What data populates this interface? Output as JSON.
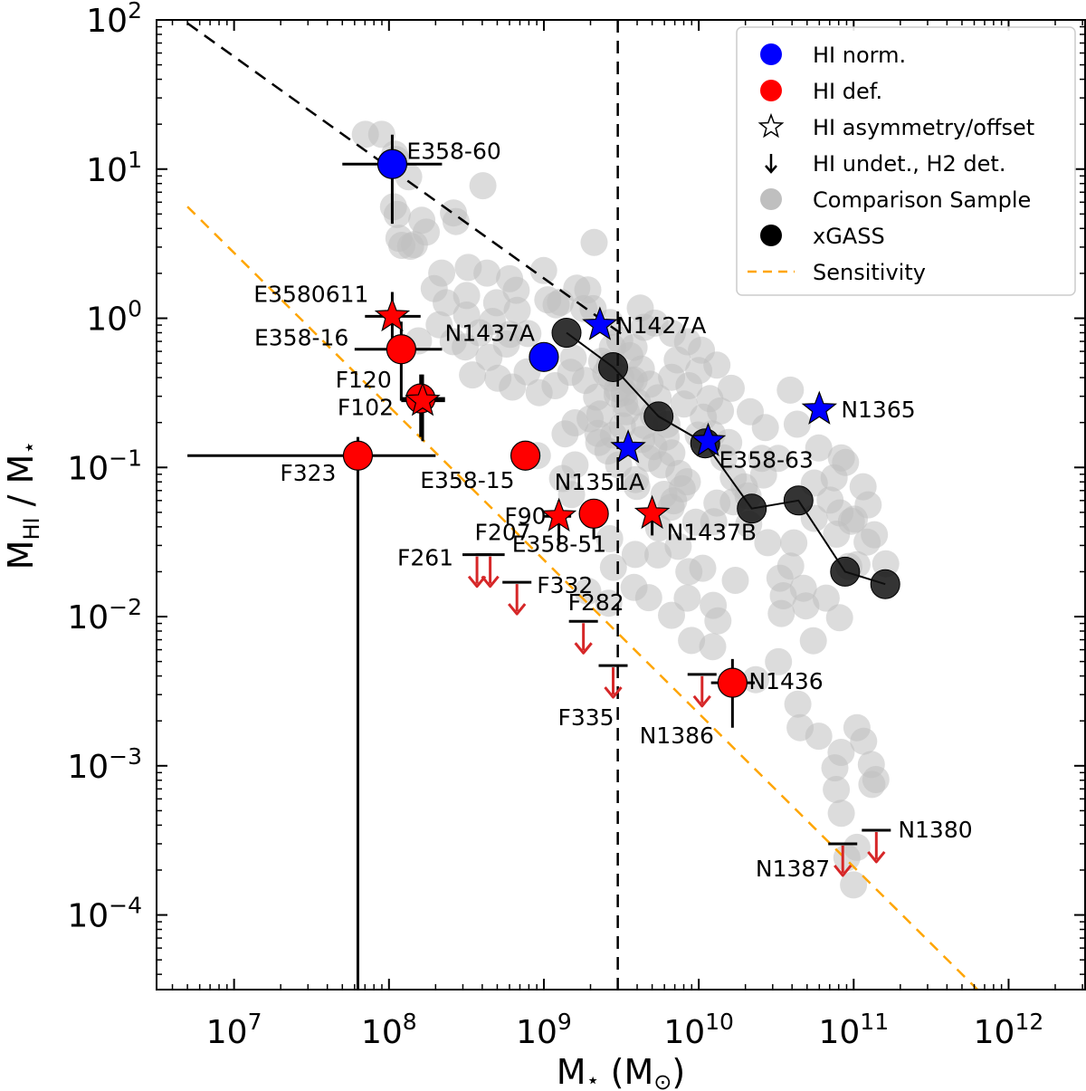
{
  "chart_data": {
    "type": "scatter",
    "xscale": "log",
    "yscale": "log",
    "xlim": [
      3160000.0,
      3160000000000.0
    ],
    "ylim": [
      3.16e-05,
      100
    ],
    "xlabel": "M⋆ (M⊙)",
    "ylabel": "MHI / M⋆",
    "xlabel_parts": [
      "M",
      "⋆",
      " (M",
      "⊙",
      ")"
    ],
    "ylabel_parts": [
      "M",
      "HI",
      " / M",
      "⋆"
    ],
    "xticks": [
      {
        "value": 10000000.0,
        "base": "10",
        "exp": "7"
      },
      {
        "value": 100000000.0,
        "base": "10",
        "exp": "8"
      },
      {
        "value": 1000000000.0,
        "base": "10",
        "exp": "9"
      },
      {
        "value": 10000000000.0,
        "base": "10",
        "exp": "10"
      },
      {
        "value": 100000000000.0,
        "base": "10",
        "exp": "11"
      },
      {
        "value": 1000000000000.0,
        "base": "10",
        "exp": "12"
      }
    ],
    "yticks": [
      {
        "value": 0.0001,
        "base": "10",
        "exp": "−4"
      },
      {
        "value": 0.001,
        "base": "10",
        "exp": "−3"
      },
      {
        "value": 0.01,
        "base": "10",
        "exp": "−2"
      },
      {
        "value": 0.1,
        "base": "10",
        "exp": "−1"
      },
      {
        "value": 1,
        "base": "10",
        "exp": "0"
      },
      {
        "value": 10,
        "base": "10",
        "exp": "1"
      },
      {
        "value": 100,
        "base": "10",
        "exp": "2"
      }
    ],
    "grid": false,
    "legend_position": "top-right",
    "colors": {
      "hi_norm": "#0000ff",
      "hi_def": "#ff0000",
      "comparison": "#bfbfbf",
      "xgass": "#000000",
      "sensitivity": "#ffa500",
      "arrow": "#d62728"
    },
    "legend": [
      {
        "label": "HI norm.",
        "marker": "circle",
        "color": "#0000ff"
      },
      {
        "label": "HI def.",
        "marker": "circle",
        "color": "#ff0000"
      },
      {
        "label": "HI asymmetry/offset",
        "marker": "star-open",
        "color": "#000000"
      },
      {
        "label": "HI undet., H2 det.",
        "marker": "arrow-down",
        "color": "#000000"
      },
      {
        "label": "Comparison Sample",
        "marker": "circle",
        "color": "#bfbfbf"
      },
      {
        "label": "xGASS",
        "marker": "circle",
        "color": "#000000"
      },
      {
        "label": "Sensitivity",
        "marker": "dashed-line",
        "color": "#ffa500"
      }
    ],
    "vertical_line_x": 3000000000.0,
    "black_dashed_line": {
      "x": [
        5000000.0,
        3200000000.0
      ],
      "y": [
        95,
        0.78
      ]
    },
    "sensitivity_line": {
      "x": [
        5000000.0,
        630000000000.0
      ],
      "y": [
        5.6,
        3.16e-05
      ]
    },
    "galaxies": [
      {
        "name": "E358-60",
        "x": 105000000.0,
        "y": 10.8,
        "group": "norm",
        "marker": "circle",
        "xerr": [
          50000000.0,
          220000000.0
        ],
        "yerr": [
          4.3,
          17
        ]
      },
      {
        "name": "N1437A",
        "x": 1000000000.0,
        "y": 0.55,
        "group": "norm",
        "marker": "circle"
      },
      {
        "name": "N1427A",
        "x": 2300000000.0,
        "y": 0.9,
        "group": "norm",
        "marker": "star"
      },
      {
        "name": "N1351A",
        "x": 3500000000.0,
        "y": 0.135,
        "group": "norm",
        "marker": "star"
      },
      {
        "name": "E358-63",
        "x": 11500000000.0,
        "y": 0.15,
        "group": "norm",
        "marker": "star"
      },
      {
        "name": "N1365",
        "x": 60000000000.0,
        "y": 0.245,
        "group": "norm",
        "marker": "star"
      },
      {
        "name": "E3580611",
        "x": 105000000.0,
        "y": 1.03,
        "group": "def",
        "marker": "star",
        "xerr": [
          70000000.0,
          160000000.0
        ],
        "yerr": [
          0.72,
          1.5
        ]
      },
      {
        "name": "E358-16",
        "x": 120000000.0,
        "y": 0.62,
        "group": "def",
        "marker": "circle",
        "xerr": [
          60000000.0,
          220000000.0
        ],
        "yerr": [
          0.28,
          0.95
        ]
      },
      {
        "name": "F120",
        "x": 160000000.0,
        "y": 0.29,
        "group": "def",
        "marker": "circle",
        "xerr": [
          120000000.0,
          230000000.0
        ],
        "yerr": [
          0.16,
          0.42
        ]
      },
      {
        "name": "F102",
        "x": 165000000.0,
        "y": 0.28,
        "group": "def",
        "marker": "star",
        "xerr": [
          120000000.0,
          230000000.0
        ],
        "yerr": [
          0.15,
          0.42
        ]
      },
      {
        "name": "F323",
        "x": 63000000.0,
        "y": 0.12,
        "group": "def",
        "marker": "circle",
        "xerr": [
          5000000.0,
          200000000.0
        ],
        "yerr": [
          3.16e-05,
          0.16
        ]
      },
      {
        "name": "E358-15",
        "x": 760000000.0,
        "y": 0.12,
        "group": "def",
        "marker": "circle"
      },
      {
        "name": "F90",
        "x": 1250000000.0,
        "y": 0.047,
        "group": "def",
        "marker": "star",
        "xerr": [
          1000000000.0,
          1500000000.0
        ],
        "yerr": [
          0.03,
          0.06
        ]
      },
      {
        "name": "E358-51",
        "x": 2100000000.0,
        "y": 0.049,
        "group": "def",
        "marker": "circle",
        "yerr": [
          0.033,
          0.058
        ]
      },
      {
        "name": "N1437B",
        "x": 5000000000.0,
        "y": 0.049,
        "group": "def",
        "marker": "star",
        "yerr": [
          0.035,
          0.06
        ]
      },
      {
        "name": "N1436",
        "x": 16500000000.0,
        "y": 0.0036,
        "group": "def",
        "marker": "circle",
        "xerr": [
          12000000000.0,
          23000000000.0
        ],
        "yerr": [
          0.0018,
          0.0052
        ]
      }
    ],
    "upper_limits": [
      {
        "name": "F261",
        "x": 370000000.0,
        "y": 0.026
      },
      {
        "name": "F207",
        "x": 450000000.0,
        "y": 0.026
      },
      {
        "name": "F332",
        "x": 670000000.0,
        "y": 0.017
      },
      {
        "name": "F282",
        "x": 1800000000.0,
        "y": 0.0093
      },
      {
        "name": "F335",
        "x": 2800000000.0,
        "y": 0.0047
      },
      {
        "name": "N1386",
        "x": 10500000000.0,
        "y": 0.0041
      },
      {
        "name": "N1387",
        "x": 85000000000.0,
        "y": 0.0003
      },
      {
        "name": "N1380",
        "x": 140000000000.0,
        "y": 0.00037
      }
    ],
    "xgass": {
      "x": [
        1400000000.0,
        2800000000.0,
        5500000000.0,
        11000000000.0,
        22000000000.0,
        44000000000.0,
        88000000000.0,
        160000000000.0
      ],
      "y": [
        0.8,
        0.47,
        0.22,
        0.145,
        0.053,
        0.06,
        0.02,
        0.0165
      ]
    },
    "comparison_sample": [
      [
        104000000.0,
        10.8
      ],
      [
        111000000.0,
        11.6
      ],
      [
        89800000.0,
        17.1
      ],
      [
        109000000.0,
        12.6
      ],
      [
        107000000.0,
        5.59
      ],
      [
        138000000.0,
        3.04
      ],
      [
        234000000.0,
        1.27
      ],
      [
        121000000.0,
        3.08
      ],
      [
        116000000.0,
        3.44
      ],
      [
        146000000.0,
        3.12
      ],
      [
        134000000.0,
        8.87
      ],
      [
        113000000.0,
        4.96
      ],
      [
        163000000.0,
        4.54
      ],
      [
        261000000.0,
        5.08
      ],
      [
        271000000.0,
        4.45
      ],
      [
        174000000.0,
        3.78
      ],
      [
        70400000.0,
        17.1
      ],
      [
        404000000.0,
        7.74
      ],
      [
        429000000.0,
        2.01
      ],
      [
        325000000.0,
        2.19
      ],
      [
        601000000.0,
        1.84
      ],
      [
        788000000.0,
        0.79
      ],
      [
        1550000000.0,
        0.54
      ],
      [
        663000000.0,
        1.54
      ],
      [
        496000000.0,
        1.27
      ],
      [
        466000000.0,
        0.952
      ],
      [
        573000000.0,
        0.672
      ],
      [
        673000000.0,
        1.13
      ],
      [
        997000000.0,
        2.09
      ],
      [
        1060000000.0,
        1.33
      ],
      [
        1200000000.0,
        1.23
      ],
      [
        1280000000.0,
        1.28
      ],
      [
        1630000000.0,
        1.59
      ],
      [
        1810000000.0,
        1.16
      ],
      [
        2110000000.0,
        3.22
      ],
      [
        1920000000.0,
        1.55
      ],
      [
        2080000000.0,
        1.16
      ],
      [
        2680000000.0,
        0.937
      ],
      [
        3090000000.0,
        0.712
      ],
      [
        3590000000.0,
        0.561
      ],
      [
        3820000000.0,
        0.638
      ],
      [
        4260000000.0,
        0.457
      ],
      [
        4840000000.0,
        0.361
      ],
      [
        3830000000.0,
        0.385
      ],
      [
        2730000000.0,
        0.396
      ],
      [
        2970000000.0,
        0.307
      ],
      [
        3320000000.0,
        0.268
      ],
      [
        2300000000.0,
        0.228
      ],
      [
        1990000000.0,
        0.212
      ],
      [
        1590000000.0,
        0.199
      ],
      [
        1370000000.0,
        0.168
      ],
      [
        2260000000.0,
        0.147
      ],
      [
        2590000000.0,
        0.129
      ],
      [
        3040000000.0,
        0.104
      ],
      [
        3910000000.0,
        0.0829
      ],
      [
        3980000000.0,
        0.0745
      ],
      [
        5960000000.0,
        0.066
      ],
      [
        6890000000.0,
        0.0598
      ],
      [
        6230000000.0,
        0.194
      ],
      [
        8030000000.0,
        0.266
      ],
      [
        10700000000.0,
        0.217
      ],
      [
        9910000000.0,
        0.165
      ],
      [
        14500000000.0,
        0.116
      ],
      [
        16700000000.0,
        0.0855
      ],
      [
        19700000000.0,
        0.0741
      ],
      [
        20800000000.0,
        0.0645
      ],
      [
        21000000000.0,
        0.0416
      ],
      [
        27900000000.0,
        0.0313
      ],
      [
        33400000000.0,
        0.0181
      ],
      [
        35100000000.0,
        0.0138
      ],
      [
        34100000000.0,
        0.0105
      ],
      [
        49100000000.0,
        0.0118
      ],
      [
        47300000000.0,
        0.0155
      ],
      [
        39200000000.0,
        0.0218
      ],
      [
        41100000000.0,
        0.0312
      ],
      [
        55600000000.0,
        0.0456
      ],
      [
        70400000000.0,
        0.0604
      ],
      [
        55700000000.0,
        0.0786
      ],
      [
        88600000000.0,
        0.108
      ],
      [
        74800000000.0,
        0.0853
      ],
      [
        96700000000.0,
        0.0436
      ],
      [
        77400000000.0,
        0.0357
      ],
      [
        105000000000.0,
        0.0223
      ],
      [
        122000000000.0,
        0.0316
      ],
      [
        66400000000.0,
        0.0133
      ],
      [
        81100000000.0,
        0.00983
      ],
      [
        54900000000.0,
        0.00689
      ],
      [
        32700000000.0,
        0.00498
      ],
      [
        23300000000.0,
        0.00378
      ],
      [
        43600000000.0,
        0.00259
      ],
      [
        45100000000.0,
        0.0018
      ],
      [
        59500000000.0,
        0.00158
      ],
      [
        82900000000.0,
        0.00123
      ],
      [
        116000000000.0,
        0.00146
      ],
      [
        75600000000.0,
        0.000969
      ],
      [
        77200000000.0,
        0.000693
      ],
      [
        83200000000.0,
        0.00048
      ],
      [
        90400000000.0,
        0.000242
      ],
      [
        99700000000.0,
        0.000159
      ],
      [
        105000000000.0,
        0.000284
      ],
      [
        131000000000.0,
        0.00075
      ],
      [
        139000000000.0,
        0.000809
      ],
      [
        12300000000.0,
        0.00628
      ],
      [
        13300000000.0,
        0.00937
      ],
      [
        10600000000.0,
        0.0211
      ],
      [
        17200000000.0,
        0.0175
      ],
      [
        7360000000.0,
        0.0296
      ],
      [
        8630000000.0,
        0.02
      ],
      [
        8430000000.0,
        0.0133
      ],
      [
        12400000000.0,
        0.0119
      ],
      [
        8980000000.0,
        0.00692
      ],
      [
        6670000000.0,
        0.0102
      ],
      [
        4750000000.0,
        0.0134
      ],
      [
        3820000000.0,
        0.0157
      ],
      [
        2620000000.0,
        0.0123
      ],
      [
        1920000000.0,
        0.0148
      ],
      [
        2810000000.0,
        0.0214
      ],
      [
        3890000000.0,
        0.0261
      ],
      [
        2660000000.0,
        0.0333
      ],
      [
        5450000000.0,
        0.0259
      ],
      [
        5510000000.0,
        0.0393
      ],
      [
        6630000000.0,
        0.0541
      ],
      [
        9560000000.0,
        0.0429
      ],
      [
        12500000000.0,
        0.0433
      ],
      [
        13100000000.0,
        0.0577
      ],
      [
        16700000000.0,
        0.0589
      ],
      [
        15600000000.0,
        0.147
      ],
      [
        12200000000.0,
        0.168
      ],
      [
        13800000000.0,
        0.239
      ],
      [
        11800000000.0,
        0.289
      ],
      [
        8640000000.0,
        0.353
      ],
      [
        10000000000.0,
        0.446
      ],
      [
        13100000000.0,
        0.485
      ],
      [
        10400000000.0,
        0.611
      ],
      [
        8460000000.0,
        0.696
      ],
      [
        6750000000.0,
        0.791
      ],
      [
        5210000000.0,
        0.927
      ],
      [
        4190000000.0,
        1.17
      ],
      [
        4450000000.0,
        0.87
      ],
      [
        7260000000.0,
        0.526
      ],
      [
        6680000000.0,
        0.402
      ],
      [
        5460000000.0,
        0.293
      ],
      [
        5070000000.0,
        0.225
      ],
      [
        4460000000.0,
        0.191
      ],
      [
        6160000000.0,
        0.16
      ],
      [
        6700000000.0,
        0.125
      ],
      [
        16200000000.0,
        0.339
      ],
      [
        21500000000.0,
        0.236
      ],
      [
        26900000000.0,
        0.185
      ],
      [
        25500000000.0,
        0.115
      ],
      [
        32500000000.0,
        0.115
      ],
      [
        26200000000.0,
        0.089
      ],
      [
        39000000000.0,
        0.33
      ],
      [
        43200000000.0,
        0.195
      ],
      [
        59500000000.0,
        0.135
      ],
      [
        83300000000.0,
        0.116
      ],
      [
        115000000000.0,
        0.0742
      ],
      [
        124000000000.0,
        0.0561
      ],
      [
        81500000000.0,
        0.0496
      ],
      [
        101000000000.0,
        0.045
      ],
      [
        161000000000.0,
        0.0226
      ],
      [
        93000000000.0,
        0.0217
      ],
      [
        136000000000.0,
        0.0354
      ],
      [
        130000000000.0,
        0.00102
      ],
      [
        105000000000.0,
        0.0018
      ],
      [
        1510000000.0,
        0.0657
      ],
      [
        1320000000.0,
        0.0843
      ],
      [
        1590000000.0,
        0.104
      ],
      [
        908000000.0,
        0.12
      ],
      [
        2190000000.0,
        0.296
      ],
      [
        1850000000.0,
        0.383
      ],
      [
        1490000000.0,
        0.434
      ],
      [
        1180000000.0,
        0.353
      ],
      [
        932000000.0,
        0.317
      ],
      [
        780000000.0,
        0.437
      ],
      [
        626000000.0,
        0.346
      ],
      [
        505000000.0,
        0.396
      ],
      [
        346000000.0,
        0.417
      ],
      [
        442000000.0,
        0.546
      ],
      [
        311000000.0,
        0.642
      ],
      [
        260000000.0,
        0.697
      ],
      [
        385000000.0,
        0.8
      ],
      [
        605000000.0,
        0.78
      ],
      [
        317000000.0,
        1.05
      ],
      [
        211000000.0,
        0.904
      ],
      [
        155000000.0,
        0.705
      ],
      [
        219000000.0,
        2.01
      ],
      [
        196000000.0,
        1.58
      ],
      [
        317000000.0,
        1.42
      ],
      [
        2770000000.0,
        0.638
      ],
      [
        2360000000.0,
        0.515
      ],
      [
        2650000000.0,
        0.486
      ],
      [
        2510000000.0,
        0.429
      ],
      [
        3130000000.0,
        0.404
      ],
      [
        3630000000.0,
        0.382
      ],
      [
        2980000000.0,
        0.337
      ],
      [
        3310000000.0,
        0.318
      ],
      [
        4020000000.0,
        0.274
      ],
      [
        3410000000.0,
        0.236
      ],
      [
        3210000000.0,
        0.19
      ],
      [
        2810000000.0,
        0.165
      ],
      [
        2230000000.0,
        0.169
      ],
      [
        4280000000.0,
        0.154
      ],
      [
        5130000000.0,
        0.138
      ],
      [
        4730000000.0,
        0.115
      ],
      [
        5750000000.0,
        0.104
      ],
      [
        7440000000.0,
        0.091
      ],
      [
        8440000000.0,
        0.0802
      ],
      [
        7810000000.0,
        0.0719
      ]
    ]
  }
}
